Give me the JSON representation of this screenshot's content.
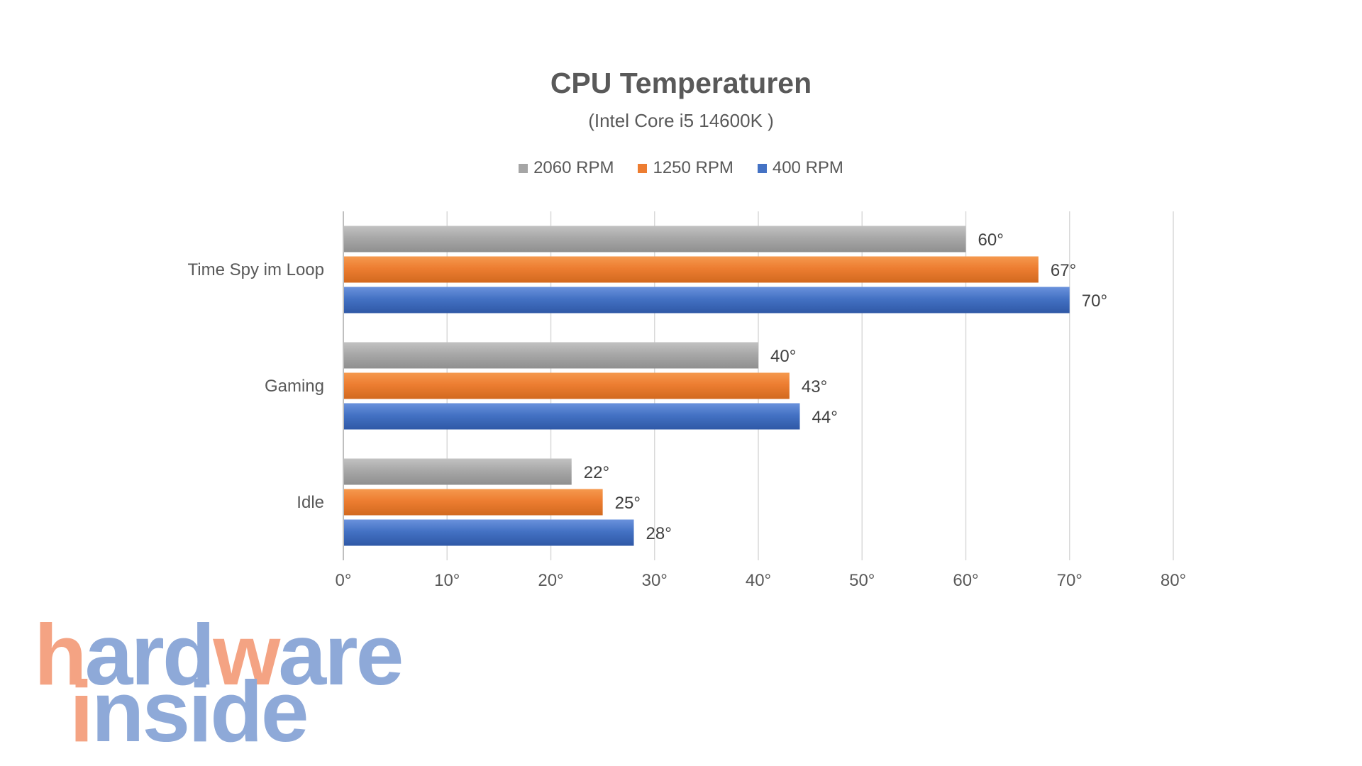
{
  "chart_data": {
    "type": "bar",
    "orientation": "horizontal",
    "title": "CPU Temperaturen",
    "subtitle": "(Intel Core i5 14600K )",
    "categories": [
      "Time Spy im Loop",
      "Gaming",
      "Idle"
    ],
    "series": [
      {
        "name": "2060 RPM",
        "color": "#a5a5a5",
        "values": [
          60,
          40,
          22
        ]
      },
      {
        "name": "1250 RPM",
        "color": "#ed7d31",
        "values": [
          67,
          43,
          25
        ]
      },
      {
        "name": "400 RPM",
        "color": "#4472c4",
        "values": [
          70,
          44,
          28
        ]
      }
    ],
    "value_suffix": "°",
    "xlim": [
      0,
      80
    ],
    "x_ticks": [
      "0°",
      "10°",
      "20°",
      "30°",
      "40°",
      "50°",
      "60°",
      "70°",
      "80°"
    ],
    "grid": "vertical",
    "legend_position": "top"
  },
  "watermark": {
    "line1": "hardware",
    "line2": "inside",
    "colors": {
      "orange": "#f4a383",
      "blue": "#8ea9d8"
    }
  }
}
